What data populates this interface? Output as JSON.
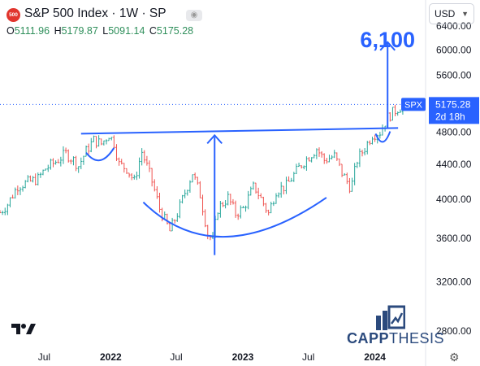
{
  "header": {
    "badge": "500",
    "title": "S&P 500 Index · 1W · SP",
    "ohlc": [
      {
        "k": "O",
        "v": "5111.96"
      },
      {
        "k": "H",
        "v": "5179.87"
      },
      {
        "k": "L",
        "v": "5091.14"
      },
      {
        "k": "C",
        "v": "5175.28"
      }
    ]
  },
  "currency": "USD",
  "chart_data": {
    "type": "bar",
    "y_scale": "log",
    "ylim": [
      2800,
      6400
    ],
    "y_ticks": [
      2800,
      3200,
      3600,
      4000,
      4400,
      4800,
      5200,
      5600,
      6000,
      6400
    ],
    "y_tick_labels": [
      "2800.00",
      "3200.00",
      "3600.00",
      "4000.00",
      "4400.00",
      "4800.00",
      "5200.00",
      "5600.00",
      "6000.00",
      "6400.00"
    ],
    "x_tick_labels": [
      "Jul",
      "2022",
      "Jul",
      "2023",
      "Jul",
      "2024"
    ],
    "x_tick_dates": [
      "2021-07-01",
      "2022-01-01",
      "2022-07-01",
      "2023-01-01",
      "2023-07-01",
      "2024-01-01"
    ],
    "x_range": [
      "2021-03-01",
      "2024-05-20"
    ],
    "series": [
      {
        "name": "SPX",
        "points": [
          [
            "2021-03-01",
            3860
          ],
          [
            "2021-03-22",
            3950
          ],
          [
            "2021-04-19",
            4150
          ],
          [
            "2021-05-17",
            4190
          ],
          [
            "2021-06-14",
            4230
          ],
          [
            "2021-07-05",
            4350
          ],
          [
            "2021-08-02",
            4430
          ],
          [
            "2021-08-30",
            4530
          ],
          [
            "2021-09-20",
            4450
          ],
          [
            "2021-10-04",
            4380
          ],
          [
            "2021-10-25",
            4560
          ],
          [
            "2021-11-15",
            4700
          ],
          [
            "2021-12-06",
            4650
          ],
          [
            "2021-12-27",
            4770
          ],
          [
            "2022-01-10",
            4660
          ],
          [
            "2022-01-24",
            4400
          ],
          [
            "2022-02-14",
            4350
          ],
          [
            "2022-03-07",
            4200
          ],
          [
            "2022-03-28",
            4550
          ],
          [
            "2022-04-25",
            4200
          ],
          [
            "2022-05-16",
            3900
          ],
          [
            "2022-06-13",
            3670
          ],
          [
            "2022-07-04",
            3850
          ],
          [
            "2022-08-15",
            4300
          ],
          [
            "2022-09-05",
            4050
          ],
          [
            "2022-09-26",
            3640
          ],
          [
            "2022-10-10",
            3580
          ],
          [
            "2022-10-24",
            3900
          ],
          [
            "2022-11-21",
            4020
          ],
          [
            "2022-12-12",
            3850
          ],
          [
            "2023-01-02",
            3900
          ],
          [
            "2023-02-01",
            4150
          ],
          [
            "2023-03-13",
            3850
          ],
          [
            "2023-04-03",
            4100
          ],
          [
            "2023-05-01",
            4150
          ],
          [
            "2023-06-12",
            4400
          ],
          [
            "2023-07-24",
            4590
          ],
          [
            "2023-08-14",
            4450
          ],
          [
            "2023-09-11",
            4500
          ],
          [
            "2023-10-02",
            4300
          ],
          [
            "2023-10-27",
            4120
          ],
          [
            "2023-11-13",
            4450
          ],
          [
            "2023-12-04",
            4600
          ],
          [
            "2023-12-25",
            4770
          ],
          [
            "2024-01-15",
            4800
          ],
          [
            "2024-02-05",
            5000
          ],
          [
            "2024-03-04",
            5120
          ],
          [
            "2024-03-25",
            5175.28
          ]
        ]
      }
    ],
    "price_label": {
      "symbol": "SPX",
      "value": "5175.28",
      "countdown": "2d 18h"
    },
    "annotations": {
      "target": "6,100",
      "target_value": 6100,
      "neckline": 4780,
      "cup_low": 3480
    }
  },
  "branding": {
    "part1": "CAPP",
    "part2": "THESIS"
  },
  "colors": {
    "up": "#26a69a",
    "down": "#ef5350",
    "drawing": "#2962ff",
    "price_line": "#2962ff"
  }
}
